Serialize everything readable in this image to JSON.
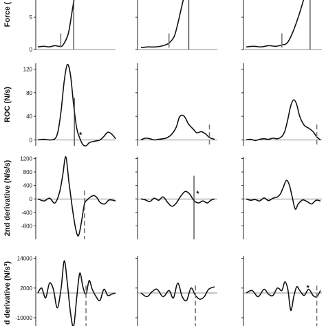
{
  "chart_data": [
    {
      "type": "line",
      "ylabel": "Force (",
      "ylim": [
        0,
        13
      ],
      "yticks": [
        0,
        5,
        10
      ],
      "panels": [
        {
          "x": [
            0,
            0.08,
            0.15,
            0.22,
            0.28,
            0.33,
            0.4,
            0.45,
            0.5,
            0.55,
            0.6
          ],
          "values": [
            0.4,
            0.5,
            0.4,
            0.6,
            0.5,
            0.7,
            2.5,
            6,
            9.5,
            12.5,
            14
          ],
          "dashed_marker_x": 0.3,
          "solid_marker_x": 0.47,
          "asterisk": null
        },
        {
          "x": [
            0,
            0.1,
            0.2,
            0.3,
            0.38,
            0.45,
            0.5,
            0.55,
            0.6,
            0.7,
            0.8,
            0.9,
            1.0
          ],
          "values": [
            0.3,
            0.4,
            0.4,
            0.6,
            1,
            2,
            4,
            6.5,
            8.5,
            10,
            10.8,
            11.5,
            12.5
          ],
          "dashed_marker_x": 0.38,
          "solid_marker_x": 0.65,
          "asterisk": null
        },
        {
          "x": [
            0,
            0.1,
            0.2,
            0.3,
            0.4,
            0.48,
            0.55,
            0.62,
            0.7,
            0.78,
            0.85,
            0.9
          ],
          "values": [
            0.4,
            0.5,
            0.4,
            0.6,
            0.5,
            0.7,
            1,
            2.5,
            5,
            8,
            11,
            13.5
          ],
          "dashed_marker_x": 0.48,
          "solid_marker_x": 0.86,
          "asterisk": null
        }
      ]
    },
    {
      "type": "line",
      "ylabel": "ROC (N/s)",
      "ylim": [
        -10,
        130
      ],
      "yticks": [
        0,
        40,
        80,
        120
      ],
      "panels": [
        {
          "x": [
            0,
            0.08,
            0.15,
            0.22,
            0.26,
            0.3,
            0.34,
            0.38,
            0.42,
            0.46,
            0.5,
            0.54,
            0.58,
            0.62,
            0.66,
            0.7,
            0.74,
            0.8,
            0.85,
            0.9,
            0.95,
            1.0
          ],
          "values": [
            0,
            1,
            0,
            2,
            15,
            50,
            100,
            128,
            110,
            60,
            20,
            3,
            -8,
            -10,
            -5,
            -3,
            -2,
            0,
            6,
            13,
            10,
            2
          ],
          "dashed_marker_x": null,
          "solid_marker_x": 0.47,
          "asterisk": 0.55
        },
        {
          "x": [
            0,
            0.06,
            0.12,
            0.18,
            0.24,
            0.3,
            0.36,
            0.42,
            0.48,
            0.52,
            0.56,
            0.6,
            0.64,
            0.68,
            0.72,
            0.76,
            0.82,
            0.88,
            0.93,
            1.0
          ],
          "values": [
            0,
            3,
            2,
            0,
            1,
            2,
            4,
            10,
            22,
            38,
            42,
            38,
            28,
            22,
            17,
            12,
            14,
            10,
            4,
            1
          ],
          "dashed_marker_x": 0.93,
          "solid_marker_x": null,
          "asterisk": null
        },
        {
          "x": [
            0,
            0.06,
            0.12,
            0.18,
            0.24,
            0.3,
            0.36,
            0.42,
            0.48,
            0.52,
            0.56,
            0.6,
            0.64,
            0.68,
            0.72,
            0.78,
            0.84,
            0.9,
            0.95,
            1.0
          ],
          "values": [
            0,
            1,
            -1,
            1,
            2,
            1,
            3,
            2,
            6,
            15,
            35,
            58,
            68,
            60,
            40,
            25,
            20,
            14,
            5,
            0
          ],
          "dashed_marker_x": 0.95,
          "solid_marker_x": null,
          "asterisk": null
        }
      ]
    },
    {
      "type": "line",
      "ylabel": "2nd derivative (N/s/s)",
      "ylim": [
        -1200,
        1250
      ],
      "yticks": [
        -800,
        -400,
        0,
        400,
        800,
        1200
      ],
      "panels": [
        {
          "x": [
            0,
            0.08,
            0.15,
            0.22,
            0.28,
            0.32,
            0.36,
            0.4,
            0.44,
            0.48,
            0.52,
            0.56,
            0.6,
            0.64,
            0.68,
            0.72,
            0.76,
            0.8,
            0.86,
            0.92,
            1.0
          ],
          "values": [
            0,
            -60,
            20,
            -120,
            200,
            700,
            1250,
            500,
            -200,
            -800,
            -1100,
            -700,
            -150,
            -20,
            60,
            100,
            40,
            -100,
            -150,
            -30,
            -60
          ],
          "dashed_marker_x": 0.6,
          "solid_marker_x": null,
          "asterisk": null
        },
        {
          "x": [
            0,
            0.06,
            0.12,
            0.18,
            0.24,
            0.3,
            0.36,
            0.42,
            0.48,
            0.54,
            0.6,
            0.66,
            0.72,
            0.78,
            0.84,
            0.9,
            0.95,
            1.0
          ],
          "values": [
            0,
            -30,
            -80,
            20,
            -40,
            60,
            -100,
            -220,
            -120,
            80,
            220,
            150,
            -50,
            -120,
            -60,
            -120,
            -40,
            0
          ],
          "dashed_marker_x": null,
          "solid_marker_x": 0.72,
          "asterisk": 0.77
        },
        {
          "x": [
            0,
            0.06,
            0.12,
            0.18,
            0.24,
            0.3,
            0.36,
            0.42,
            0.46,
            0.5,
            0.54,
            0.58,
            0.62,
            0.66,
            0.7,
            0.76,
            0.82,
            0.88,
            0.94,
            1.0
          ],
          "values": [
            0,
            -40,
            -20,
            -60,
            30,
            -50,
            20,
            60,
            150,
            350,
            550,
            420,
            50,
            -300,
            -150,
            -30,
            -80,
            -150,
            -40,
            -60
          ],
          "dashed_marker_x": null,
          "solid_marker_x": null,
          "asterisk": null
        }
      ]
    },
    {
      "type": "line",
      "ylabel": "d derivative (N/s³)",
      "ylim": [
        -15000,
        15000
      ],
      "yticks": [
        -10000,
        2000,
        14000
      ],
      "panels": [
        {
          "x": [
            0,
            0.05,
            0.1,
            0.15,
            0.2,
            0.25,
            0.3,
            0.34,
            0.38,
            0.42,
            0.46,
            0.5,
            0.54,
            0.58,
            0.62,
            0.66,
            0.7,
            0.75,
            0.8,
            0.85,
            0.9,
            0.95,
            1.0
          ],
          "values": [
            0,
            2000,
            -2000,
            4000,
            1500,
            -6000,
            2000,
            13000,
            4000,
            -8000,
            -13500,
            -2000,
            8000,
            2500,
            -500,
            5000,
            1500,
            -1500,
            -3000,
            1500,
            -1000,
            -500,
            0
          ],
          "dashed_marker_x": 0.62,
          "solid_marker_x": null,
          "asterisk": null
        },
        {
          "x": [
            0,
            0.08,
            0.15,
            0.22,
            0.3,
            0.38,
            0.44,
            0.5,
            0.56,
            0.62,
            0.68,
            0.74,
            0.8,
            0.86,
            0.92,
            1.0
          ],
          "values": [
            0,
            -1500,
            500,
            1500,
            -1500,
            1000,
            -2000,
            4000,
            -1500,
            -3000,
            2000,
            -1000,
            -2500,
            -1500,
            1500,
            2500
          ],
          "dashed_marker_x": 0.74,
          "solid_marker_x": null,
          "asterisk": null
        },
        {
          "x": [
            0,
            0.08,
            0.16,
            0.24,
            0.3,
            0.36,
            0.42,
            0.48,
            0.52,
            0.56,
            0.6,
            0.64,
            0.68,
            0.72,
            0.78,
            0.84,
            0.9,
            0.95,
            1.0
          ],
          "values": [
            0,
            1000,
            -1500,
            1500,
            -500,
            -1000,
            2000,
            1000,
            4500,
            1500,
            -7000,
            -1500,
            2500,
            1000,
            -1000,
            1500,
            -1000,
            -1500,
            1000
          ],
          "dashed_marker_x": 0.95,
          "solid_marker_x": null,
          "asterisk": 0.83
        }
      ]
    }
  ]
}
